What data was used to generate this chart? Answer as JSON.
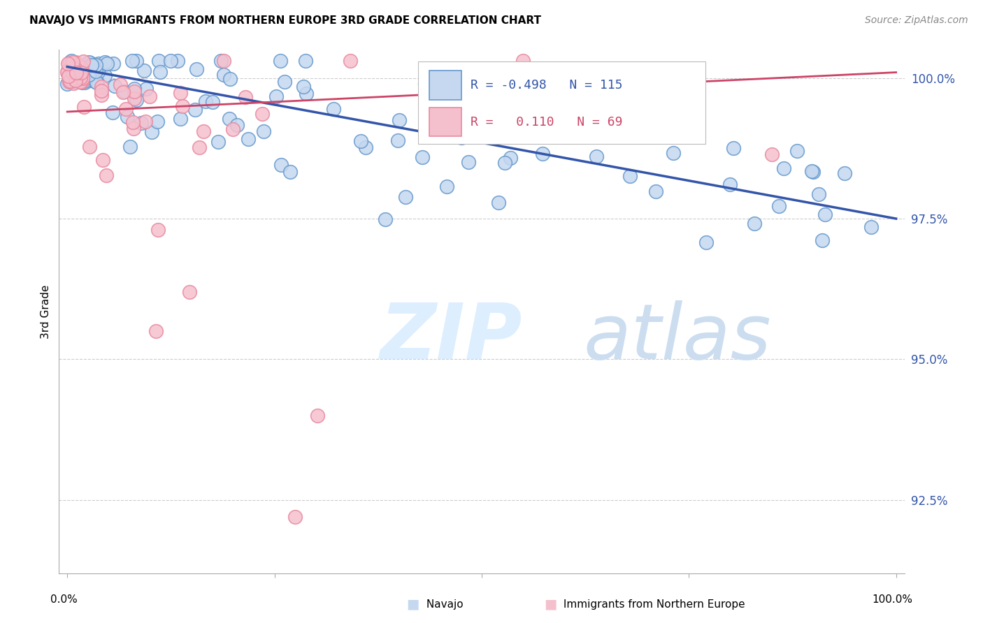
{
  "title": "NAVAJO VS IMMIGRANTS FROM NORTHERN EUROPE 3RD GRADE CORRELATION CHART",
  "source": "Source: ZipAtlas.com",
  "ylabel": "3rd Grade",
  "xmin": 0.0,
  "xmax": 1.0,
  "ymin": 0.912,
  "ymax": 1.005,
  "yticks": [
    0.925,
    0.95,
    0.975,
    1.0
  ],
  "ytick_labels": [
    "92.5%",
    "95.0%",
    "97.5%",
    "100.0%"
  ],
  "legend_blue_r": "-0.498",
  "legend_blue_n": "115",
  "legend_pink_r": "0.110",
  "legend_pink_n": "69",
  "blue_fill": "#c5d8f0",
  "blue_edge": "#6699cc",
  "pink_fill": "#f5c0ce",
  "pink_edge": "#e88aa0",
  "blue_line_color": "#3355aa",
  "pink_line_color": "#cc4466",
  "blue_line_start_y": 1.002,
  "blue_line_end_y": 0.975,
  "pink_line_start_y": 0.994,
  "pink_line_end_y": 1.001
}
